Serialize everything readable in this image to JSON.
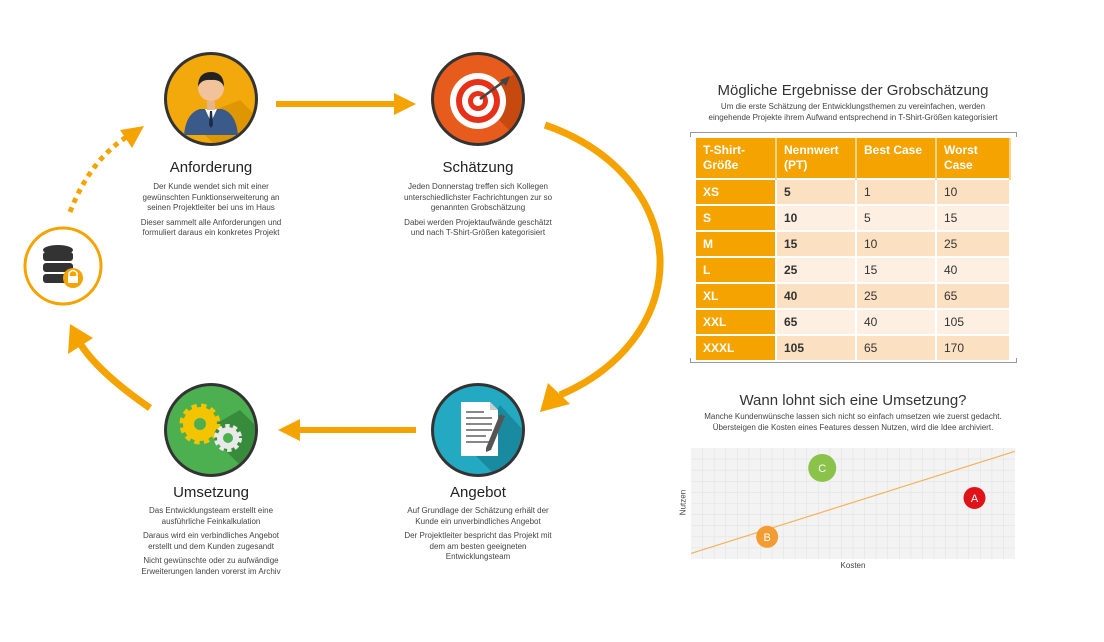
{
  "cycle": {
    "steps": [
      {
        "title": "Anforderung",
        "icon": "person-icon",
        "paragraphs": [
          "Der Kunde wendet sich mit einer gewünschten Funktionserweiterung an seinen Projektleiter bei uns im Haus",
          "Dieser sammelt alle Anforderungen und formuliert daraus ein konkretes Projekt"
        ]
      },
      {
        "title": "Schätzung",
        "icon": "target-icon",
        "paragraphs": [
          "Jeden Donnerstag treffen sich Kollegen unterschiedlichster Fachrichtungen zur so genannten Grobschätzung",
          "Dabei werden Projektaufwände geschätzt und nach T-Shirt-Größen kategorisiert"
        ]
      },
      {
        "title": "Angebot",
        "icon": "document-icon",
        "paragraphs": [
          "Auf Grundlage der Schätzung erhält der Kunde ein unverbindliches Angebot",
          "Der Projektleiter bespricht das Projekt mit dem am besten geeigneten Entwicklungsteam"
        ]
      },
      {
        "title": "Umsetzung",
        "icon": "gears-icon",
        "paragraphs": [
          "Das Entwicklungsteam erstellt eine ausführliche Feinkalkulation",
          "Daraus wird ein verbindliches Angebot erstellt und dem Kunden zugesandt",
          "Nicht gewünschte oder zu aufwändige Erweiterungen landen vorerst im Archiv"
        ]
      }
    ],
    "archive_icon": "database-lock-icon"
  },
  "estimate_table": {
    "title": "Mögliche Ergebnisse der Grobschätzung",
    "subtitle_lines": [
      "Um die erste Schätzung der Entwicklungsthemen zu vereinfachen, werden",
      "eingehende Projekte ihrem Aufwand entsprechend in T-Shirt-Größen kategorisiert"
    ],
    "headers": [
      [
        "T-Shirt-",
        "Größe"
      ],
      [
        "Nennwert",
        "(PT)"
      ],
      [
        "Best Case"
      ],
      [
        "Worst",
        "Case"
      ]
    ],
    "rows": [
      [
        "XS",
        "5",
        "1",
        "10"
      ],
      [
        "S",
        "10",
        "5",
        "15"
      ],
      [
        "M",
        "15",
        "10",
        "25"
      ],
      [
        "L",
        "25",
        "15",
        "40"
      ],
      [
        "XL",
        "40",
        "25",
        "65"
      ],
      [
        "XXL",
        "65",
        "40",
        "105"
      ],
      [
        "XXXL",
        "105",
        "65",
        "170"
      ]
    ]
  },
  "chart_data": {
    "type": "scatter",
    "title": "Wann lohnt sich eine Umsetzung?",
    "subtitle_lines": [
      "Manche Kundenwünsche lassen sich nicht so einfach umsetzen wie zuerst gedacht.",
      "Übersteigen die Kosten eines Features dessen Nutzen, wird die Idee archiviert."
    ],
    "xlabel": "Kosten",
    "ylabel": "Nutzen",
    "xlim": [
      0,
      1
    ],
    "ylim": [
      0,
      1
    ],
    "grid": true,
    "line": {
      "x": [
        0,
        1
      ],
      "y": [
        0.05,
        0.97
      ],
      "color": "#f5b25a"
    },
    "points": [
      {
        "label": "C",
        "x": 0.405,
        "y": 0.82,
        "color": "#8bc34a"
      },
      {
        "label": "A",
        "x": 0.875,
        "y": 0.55,
        "color": "#e0131a"
      },
      {
        "label": "B",
        "x": 0.235,
        "y": 0.2,
        "color": "#f39c32"
      }
    ]
  },
  "colors": {
    "accent": "#f5a300",
    "circle_border": "#333333"
  }
}
